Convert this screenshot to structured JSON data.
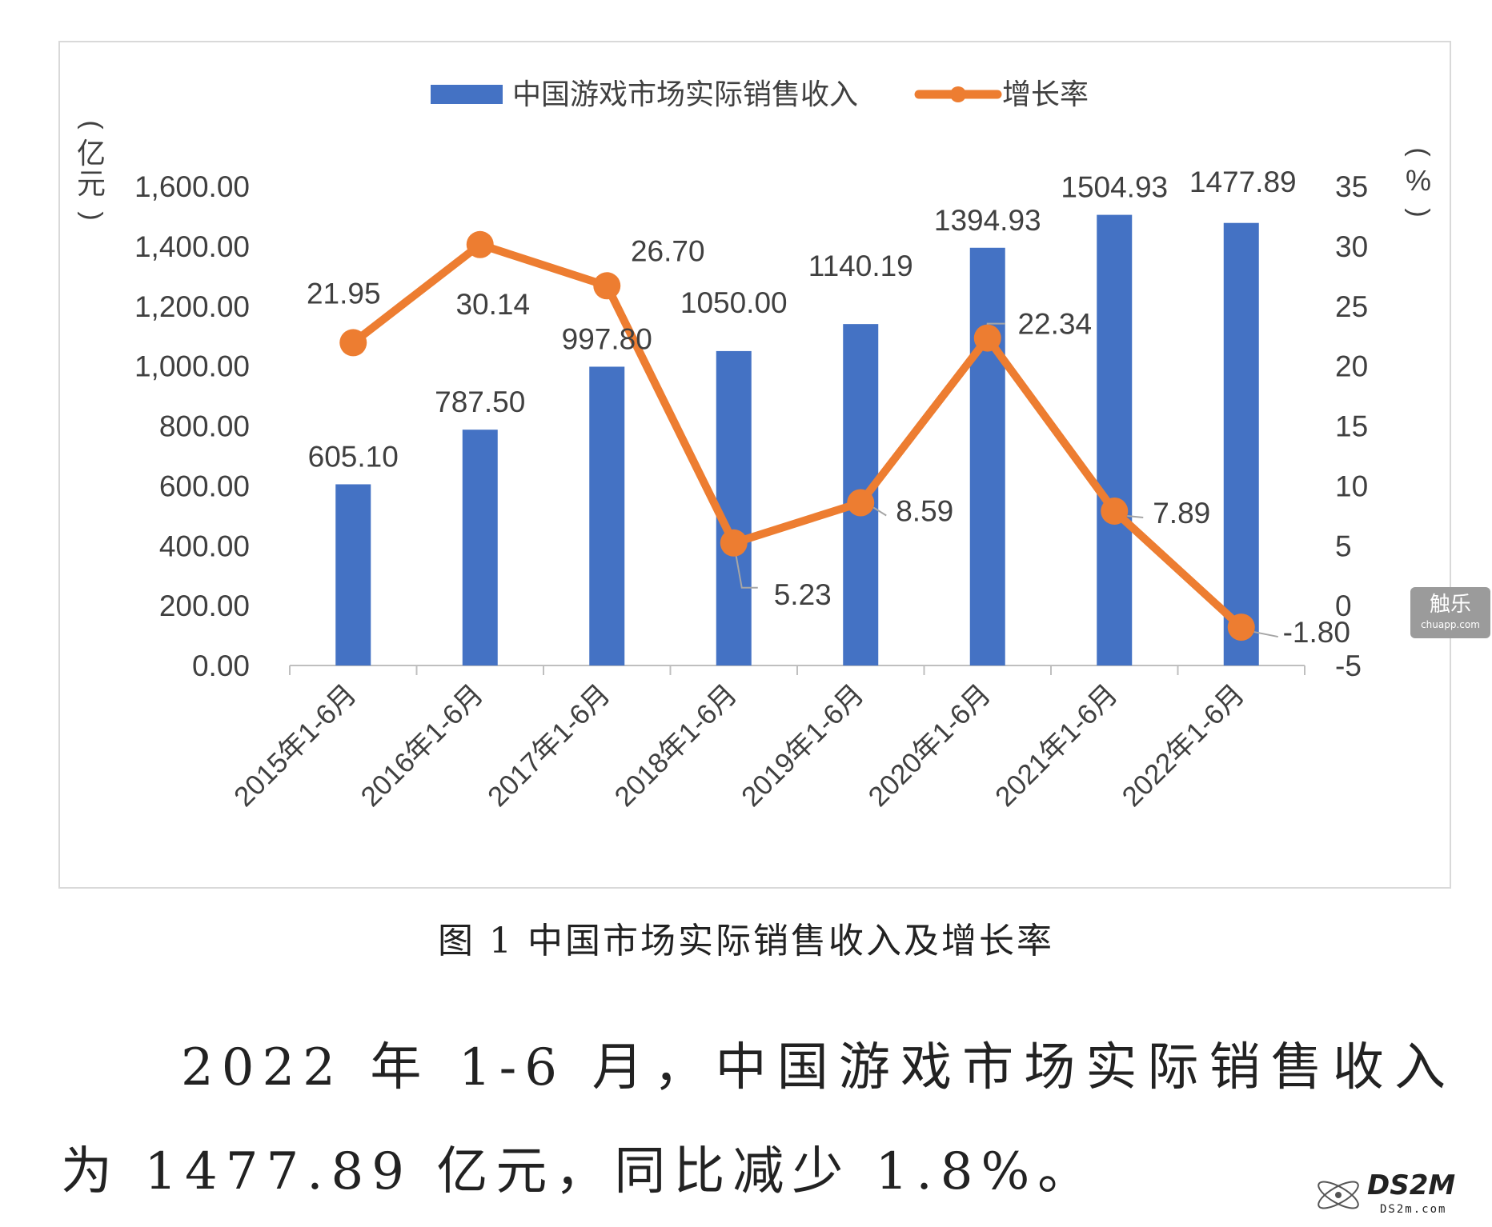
{
  "chart_data": {
    "type": "bar",
    "categories": [
      "2015年1-6月",
      "2016年1-6月",
      "2017年1-6月",
      "2018年1-6月",
      "2019年1-6月",
      "2020年1-6月",
      "2021年1-6月",
      "2022年1-6月"
    ],
    "series": [
      {
        "name": "中国游戏市场实际销售收入",
        "type": "bar",
        "axis": "left",
        "values": [
          605.1,
          787.5,
          997.8,
          1050.0,
          1140.19,
          1394.93,
          1504.93,
          1477.89
        ],
        "labels": [
          "605.10",
          "787.50",
          "997.80",
          "1050.00",
          "1140.19",
          "1394.93",
          "1504.93",
          "1477.89"
        ]
      },
      {
        "name": "增长率",
        "type": "line",
        "axis": "right",
        "values": [
          21.95,
          30.14,
          26.7,
          5.23,
          8.59,
          22.34,
          7.89,
          -1.8
        ],
        "labels": [
          "21.95",
          "30.14",
          "26.70",
          "5.23",
          "8.59",
          "22.34",
          "7.89",
          "-1.80"
        ]
      }
    ],
    "yLeft": {
      "label": "（亿元）",
      "range": [
        0,
        1600
      ],
      "ticks": [
        "0.00",
        "200.00",
        "400.00",
        "600.00",
        "800.00",
        "1,000.00",
        "1,200.00",
        "1,400.00",
        "1,600.00"
      ]
    },
    "yRight": {
      "label": "（%）",
      "range": [
        -5,
        35
      ],
      "ticks": [
        "-5",
        "0",
        "5",
        "10",
        "15",
        "20",
        "25",
        "30",
        "35"
      ]
    },
    "legend": "top",
    "grid": false,
    "colors": {
      "bar": "#4472c4",
      "line": "#ed7d31"
    }
  },
  "caption": "图 1 中国市场实际销售收入及增长率",
  "paragraph": "2022 年 1-6 月，中国游戏市场实际销售收入为 1477.89 亿元，同比减少 1.8%。",
  "watermark": {
    "badge_main": "触乐",
    "badge_sub": "chuapp.com",
    "logo_main": "DS2M",
    "logo_sub": "DS2m.com"
  }
}
